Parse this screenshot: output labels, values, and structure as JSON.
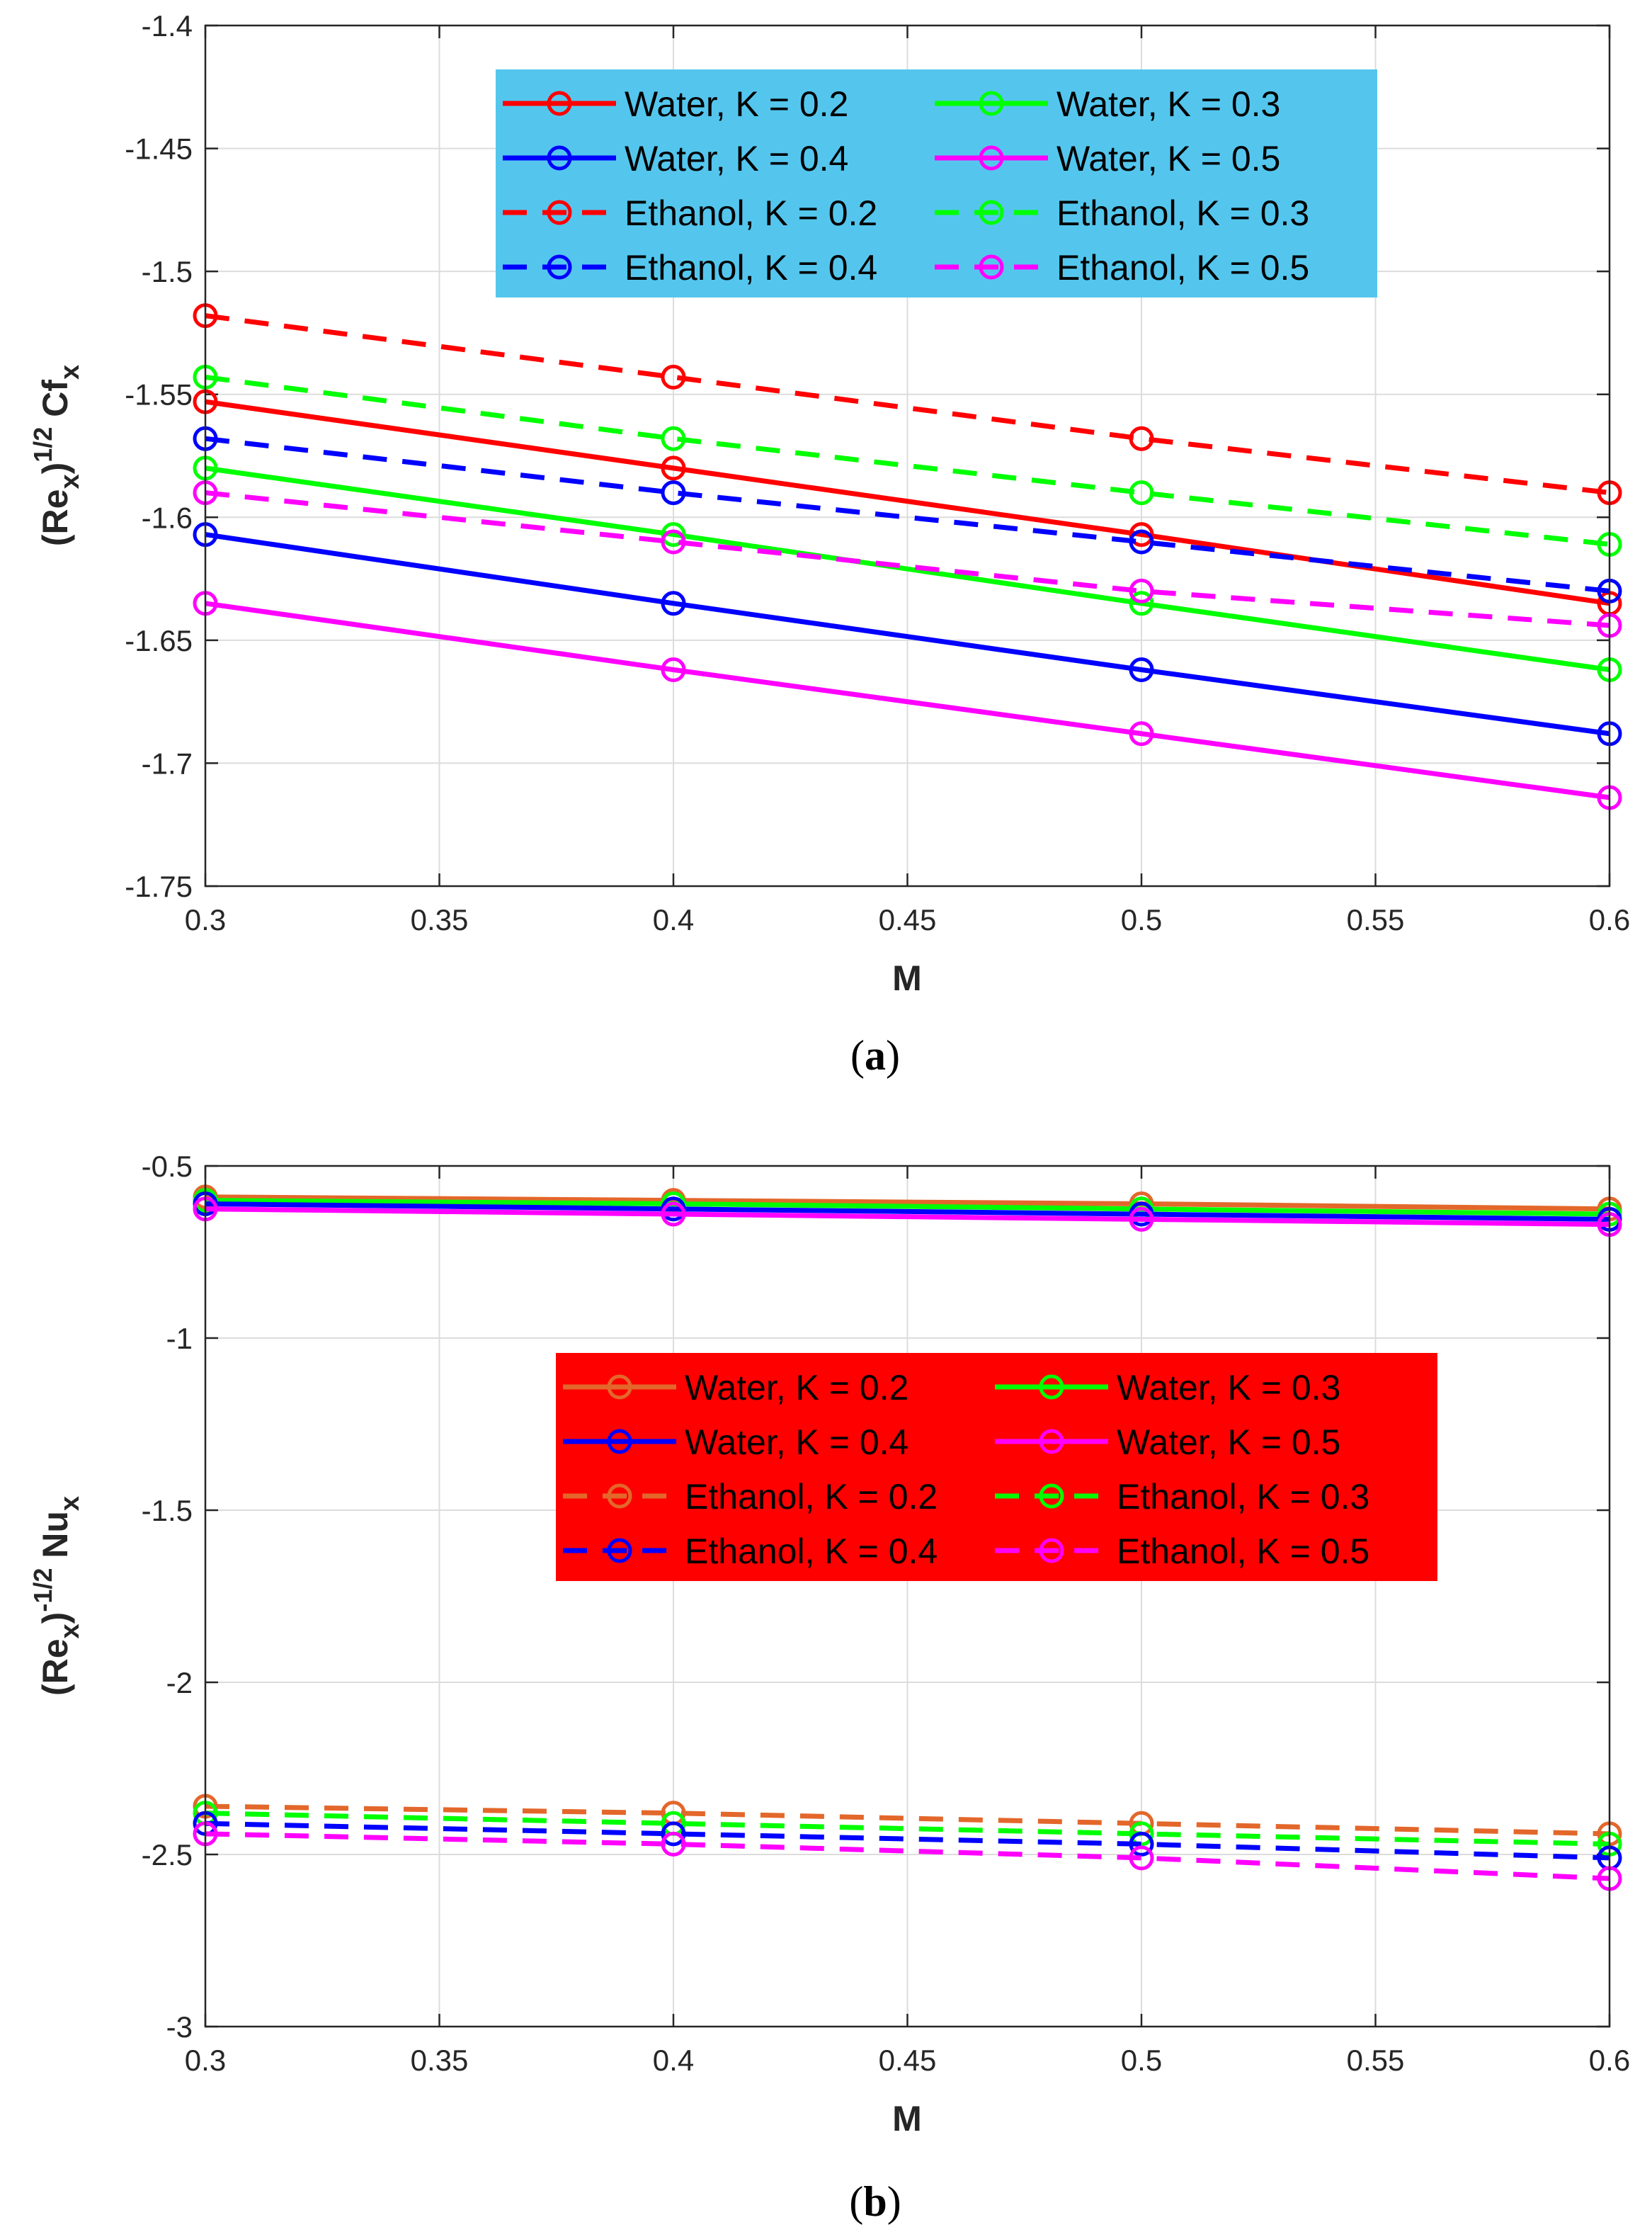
{
  "chart_data": [
    {
      "type": "line",
      "panel_id": "a",
      "caption_letter": "a",
      "xlabel": "M",
      "ylabel": {
        "main": "(Re",
        "sub1": "x",
        "mid": ")",
        "sup": "1/2",
        "tail": " Cf",
        "sub2": "x"
      },
      "x": [
        0.3,
        0.4,
        0.5,
        0.6
      ],
      "xlim": [
        0.3,
        0.6
      ],
      "ylim": [
        -1.75,
        -1.4
      ],
      "xticks": [
        0.3,
        0.35,
        0.4,
        0.45,
        0.5,
        0.55,
        0.6
      ],
      "xtick_labels": [
        "0.3",
        "0.35",
        "0.4",
        "0.45",
        "0.5",
        "0.55",
        "0.6"
      ],
      "yticks": [
        -1.4,
        -1.45,
        -1.5,
        -1.55,
        -1.6,
        -1.65,
        -1.7,
        -1.75
      ],
      "ytick_labels": [
        "-1.4",
        "-1.45",
        "-1.5",
        "-1.55",
        "-1.6",
        "-1.65",
        "-1.7",
        "-1.75"
      ],
      "grid": true,
      "legend_position": "top-center",
      "legend_background": "#54c6ee",
      "series": [
        {
          "name": "Water, K = 0.2",
          "color": "#ff0000",
          "style": "solid",
          "values": [
            -1.553,
            -1.58,
            -1.607,
            -1.635
          ]
        },
        {
          "name": "Water, K = 0.3",
          "color": "#00ff00",
          "style": "solid",
          "values": [
            -1.58,
            -1.607,
            -1.635,
            -1.662
          ]
        },
        {
          "name": "Water, K = 0.4",
          "color": "#0000ff",
          "style": "solid",
          "values": [
            -1.607,
            -1.635,
            -1.662,
            -1.688
          ]
        },
        {
          "name": "Water, K = 0.5",
          "color": "#ff00ff",
          "style": "solid",
          "values": [
            -1.635,
            -1.662,
            -1.688,
            -1.714
          ]
        },
        {
          "name": "Ethanol, K = 0.2",
          "color": "#ff0000",
          "style": "dashed",
          "values": [
            -1.518,
            -1.543,
            -1.568,
            -1.59
          ]
        },
        {
          "name": "Ethanol, K = 0.3",
          "color": "#00ff00",
          "style": "dashed",
          "values": [
            -1.543,
            -1.568,
            -1.59,
            -1.611
          ]
        },
        {
          "name": "Ethanol, K = 0.4",
          "color": "#0000ff",
          "style": "dashed",
          "values": [
            -1.568,
            -1.59,
            -1.61,
            -1.63
          ]
        },
        {
          "name": "Ethanol, K = 0.5",
          "color": "#ff00ff",
          "style": "dashed",
          "values": [
            -1.59,
            -1.61,
            -1.63,
            -1.644
          ]
        }
      ]
    },
    {
      "type": "line",
      "panel_id": "b",
      "caption_letter": "b",
      "xlabel": "M",
      "ylabel": {
        "main": "(Re",
        "sub1": "x",
        "mid": ")",
        "sup": "-1/2",
        "tail": " Nu",
        "sub2": "x"
      },
      "x": [
        0.3,
        0.4,
        0.5,
        0.6
      ],
      "xlim": [
        0.3,
        0.6
      ],
      "ylim": [
        -3,
        -0.5
      ],
      "xticks": [
        0.3,
        0.35,
        0.4,
        0.45,
        0.5,
        0.55,
        0.6
      ],
      "xtick_labels": [
        "0.3",
        "0.35",
        "0.4",
        "0.45",
        "0.5",
        "0.55",
        "0.6"
      ],
      "yticks": [
        -0.5,
        -1,
        -1.5,
        -2,
        -2.5,
        -3
      ],
      "ytick_labels": [
        "-0.5",
        "-1",
        "-1.5",
        "-2",
        "-2.5",
        "-3"
      ],
      "grid": true,
      "legend_position": "center",
      "legend_background": "#ff0000",
      "series": [
        {
          "name": "Water, K = 0.2",
          "color": "#e3672b",
          "style": "solid",
          "values": [
            -0.59,
            -0.6,
            -0.61,
            -0.625
          ]
        },
        {
          "name": "Water, K = 0.3",
          "color": "#00ff00",
          "style": "solid",
          "values": [
            -0.6,
            -0.61,
            -0.625,
            -0.64
          ]
        },
        {
          "name": "Water, K = 0.4",
          "color": "#0000ff",
          "style": "solid",
          "values": [
            -0.61,
            -0.625,
            -0.64,
            -0.655
          ]
        },
        {
          "name": "Water, K = 0.5",
          "color": "#ff00ff",
          "style": "solid",
          "values": [
            -0.625,
            -0.64,
            -0.655,
            -0.67
          ]
        },
        {
          "name": "Ethanol, K = 0.2",
          "color": "#e3672b",
          "style": "dashed",
          "values": [
            -2.36,
            -2.38,
            -2.41,
            -2.44
          ]
        },
        {
          "name": "Ethanol, K = 0.3",
          "color": "#00ff00",
          "style": "dashed",
          "values": [
            -2.38,
            -2.41,
            -2.44,
            -2.47
          ]
        },
        {
          "name": "Ethanol, K = 0.4",
          "color": "#0000ff",
          "style": "dashed",
          "values": [
            -2.41,
            -2.44,
            -2.47,
            -2.51
          ]
        },
        {
          "name": "Ethanol, K = 0.5",
          "color": "#ff00ff",
          "style": "dashed",
          "values": [
            -2.44,
            -2.47,
            -2.51,
            -2.57
          ]
        }
      ]
    }
  ]
}
